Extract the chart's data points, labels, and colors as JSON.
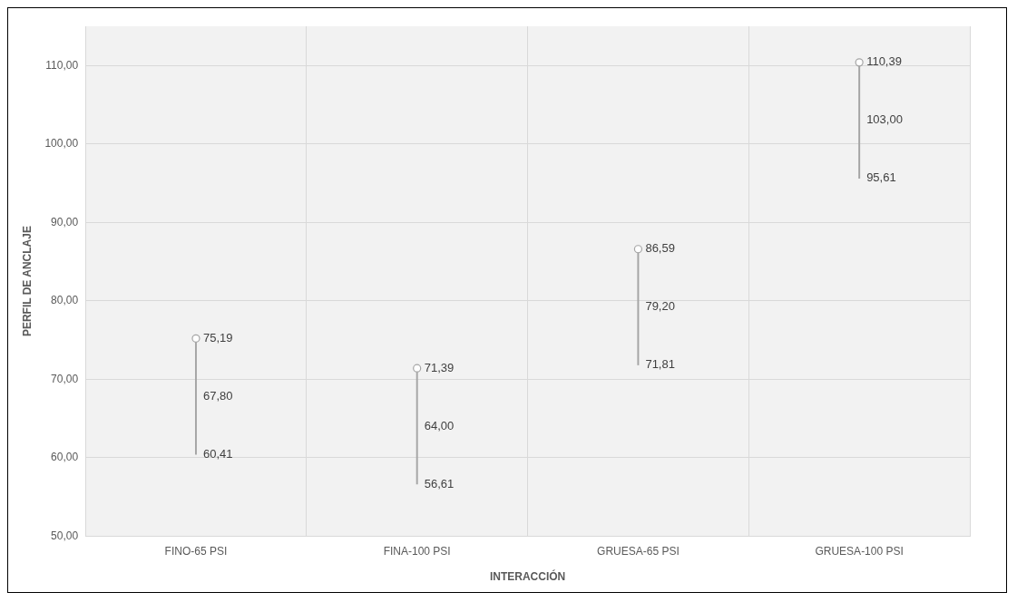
{
  "chart_data": {
    "type": "scatter",
    "xlabel": "INTERACCIÓN",
    "ylabel": "PERFIL DE ANCLAJE",
    "categories": [
      "FINO-65 PSI",
      "FINA-100 PSI",
      "GRUESA-65 PSI",
      "GRUESA-100 PSI"
    ],
    "series": [
      {
        "type": "bar",
        "color": "#a5a5a5",
        "base": [
          60.41,
          56.61,
          71.81,
          95.61
        ],
        "values": [
          14.78,
          14.78,
          14.78,
          14.78
        ]
      },
      {
        "color": "#a5a5a5",
        "marker": "circle",
        "values": [
          75.19,
          71.39,
          86.59,
          110.39
        ],
        "value_labels": [
          "75,19",
          "71,39",
          "86,59",
          "110,39"
        ]
      }
    ],
    "annotations": [
      {
        "text": "67,80",
        "x": "FINO-65 PSI",
        "y": 67.8
      },
      {
        "text": "64,00",
        "x": "FINA-100 PSI",
        "y": 64.0
      },
      {
        "text": "79,20",
        "x": "GRUESA-65 PSI",
        "y": 79.2
      },
      {
        "text": "103,00",
        "x": "GRUESA-100 PSI",
        "y": 103.0
      },
      {
        "text": "60,41",
        "x": "FINO-65 PSI",
        "y": 60.41
      },
      {
        "text": "56,61",
        "x": "FINA-100 PSI",
        "y": 56.61
      },
      {
        "text": "71,81",
        "x": "GRUESA-65 PSI",
        "y": 71.81
      },
      {
        "text": "95,61",
        "x": "GRUESA-100 PSI",
        "y": 95.61
      }
    ],
    "ylim": [
      50,
      115
    ],
    "yticks": [
      {
        "value": 50,
        "label": "50,00"
      },
      {
        "value": 60,
        "label": "60,00"
      },
      {
        "value": 70,
        "label": "70,00"
      },
      {
        "value": 80,
        "label": "80,00"
      },
      {
        "value": 90,
        "label": "90,00"
      },
      {
        "value": 100,
        "label": "100,00"
      },
      {
        "value": 110,
        "label": "110,00"
      }
    ],
    "grid": true,
    "legend": false
  }
}
